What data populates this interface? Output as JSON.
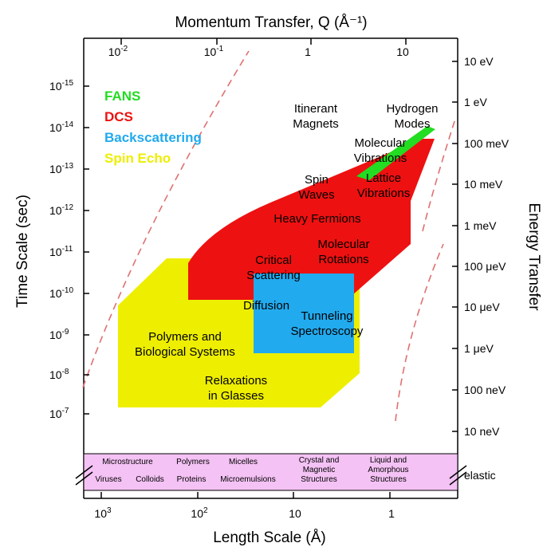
{
  "chart_data": {
    "type": "area",
    "top_axis": {
      "title": "Momentum Transfer, Q (Å⁻¹)",
      "ticks": [
        {
          "base": "10",
          "exp": "-2"
        },
        {
          "base": "10",
          "exp": "-1"
        },
        {
          "base": "1",
          "exp": ""
        },
        {
          "base": "10",
          "exp": ""
        }
      ]
    },
    "bottom_axis": {
      "title": "Length Scale (Å)",
      "ticks": [
        {
          "base": "10",
          "exp": "3"
        },
        {
          "base": "10",
          "exp": "2"
        },
        {
          "base": "10",
          "exp": ""
        },
        {
          "base": "1",
          "exp": ""
        }
      ]
    },
    "left_axis": {
      "title": "Time Scale (sec)",
      "scale": "log",
      "ticks": [
        {
          "base": "10",
          "exp": "-15"
        },
        {
          "base": "10",
          "exp": "-14"
        },
        {
          "base": "10",
          "exp": "-13"
        },
        {
          "base": "10",
          "exp": "-12"
        },
        {
          "base": "10",
          "exp": "-11"
        },
        {
          "base": "10",
          "exp": "-10"
        },
        {
          "base": "10",
          "exp": "-9"
        },
        {
          "base": "10",
          "exp": "-8"
        },
        {
          "base": "10",
          "exp": "-7"
        }
      ]
    },
    "right_axis": {
      "title": "Energy Transfer",
      "ticks": [
        "10 eV",
        "1 eV",
        "100 meV",
        "10 meV",
        "1 meV",
        "100 μeV",
        "10 μeV",
        "1 μeV",
        "100 neV",
        "10 neV",
        "elastic"
      ]
    },
    "legend": {
      "placement": "top-left",
      "entries": [
        {
          "label": "FANS",
          "color": "#22dd22"
        },
        {
          "label": "DCS",
          "color": "#ee1111"
        },
        {
          "label": "Backscattering",
          "color": "#22aaee"
        },
        {
          "label": "Spin Echo",
          "color": "#eeee00"
        }
      ]
    },
    "region_labels": [
      "Itinerant\nMagnets",
      "Hydrogen\nModes",
      "Molecular\nVibrations",
      "Lattice\nVibrations",
      "Spin\nWaves",
      "Heavy Fermions",
      "Molecular\nRotations",
      "Critical\nScattering",
      "Diffusion",
      "Tunneling\nSpectroscopy",
      "Polymers and\nBiological Systems",
      "Relaxations\nin Glasses"
    ],
    "elastic_band": [
      "Microstructure",
      "Polymers",
      "Micelles",
      "Viruses",
      "Colloids",
      "Proteins",
      "Microemulsions",
      "Crystal and\nMagnetic\nStructures",
      "Liquid and\nAmorphous\nStructures"
    ],
    "colors": {
      "spin_echo": "#eeee00",
      "dcs": "#ee1111",
      "backscattering": "#22aaee",
      "fans": "#22dd22",
      "elastic_band": "#f4c2f4",
      "boundary": "#e07070"
    }
  }
}
